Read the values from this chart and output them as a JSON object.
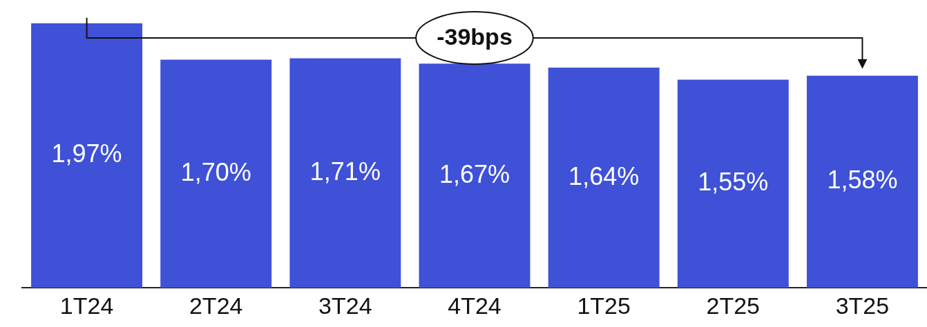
{
  "chart_data": {
    "type": "bar",
    "categories": [
      "1T24",
      "2T24",
      "3T24",
      "4T24",
      "1T25",
      "2T25",
      "3T25"
    ],
    "values": [
      1.97,
      1.7,
      1.71,
      1.67,
      1.64,
      1.55,
      1.58
    ],
    "value_labels": [
      "1,97%",
      "1,70%",
      "1,71%",
      "1,67%",
      "1,64%",
      "1,55%",
      "1,58%"
    ],
    "color": "#3f51d6",
    "tick_labels": "x",
    "grid": false,
    "legend": false,
    "annotations": [
      "-39bps"
    ]
  }
}
